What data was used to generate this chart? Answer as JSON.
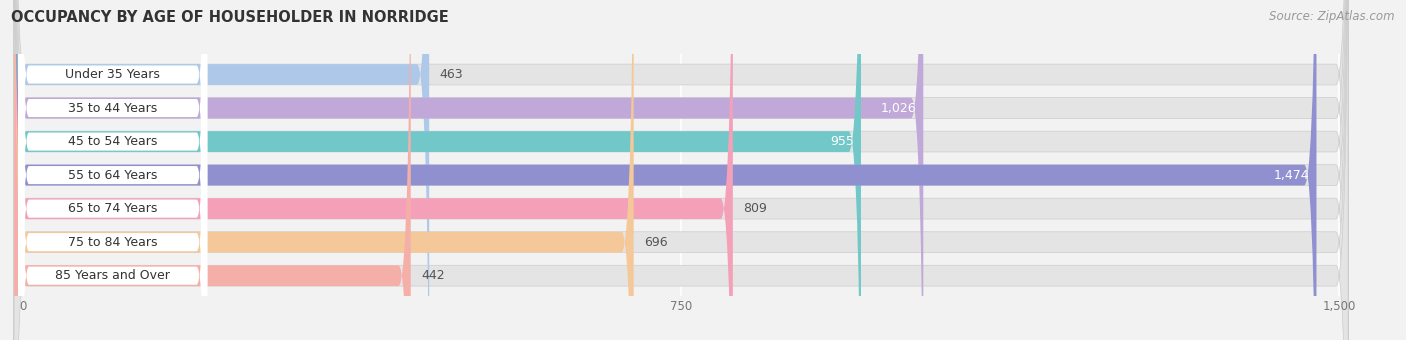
{
  "title": "OCCUPANCY BY AGE OF HOUSEHOLDER IN NORRIDGE",
  "source": "Source: ZipAtlas.com",
  "categories": [
    "Under 35 Years",
    "35 to 44 Years",
    "45 to 54 Years",
    "55 to 64 Years",
    "65 to 74 Years",
    "75 to 84 Years",
    "85 Years and Over"
  ],
  "values": [
    463,
    1026,
    955,
    1474,
    809,
    696,
    442
  ],
  "bar_colors": [
    "#adc8e8",
    "#c0a8d8",
    "#72c8c8",
    "#9090d0",
    "#f4a0b8",
    "#f4c898",
    "#f4b0a8"
  ],
  "label_colors": [
    "#555555",
    "#ffffff",
    "#ffffff",
    "#ffffff",
    "#555555",
    "#555555",
    "#555555"
  ],
  "xlim_data": [
    0,
    1500
  ],
  "xticks": [
    0,
    750,
    1500
  ],
  "xticklabels": [
    "0",
    "750",
    "1,500"
  ],
  "background_color": "#f2f2f2",
  "bar_bg_color": "#e4e4e4",
  "title_fontsize": 10.5,
  "source_fontsize": 8.5,
  "value_fontsize": 9,
  "category_fontsize": 9,
  "tick_fontsize": 8.5,
  "pill_color": "#ffffff",
  "pill_border_color": "#dddddd"
}
